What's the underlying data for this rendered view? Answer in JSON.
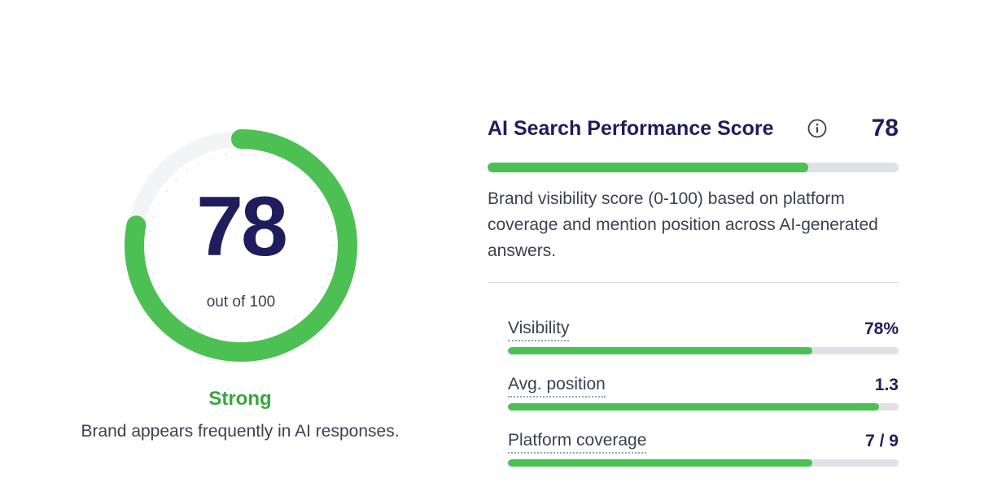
{
  "colors": {
    "accent_green": "#4cc052",
    "rating_green": "#3aa53f",
    "track_gray": "#dfe1e6",
    "navy": "#1f1d5c",
    "text_gray": "#3d3f52"
  },
  "gauge": {
    "score": "78",
    "out_of": "out of 100",
    "fraction": 0.78,
    "rating": "Strong",
    "caption": "Brand appears frequently in AI responses."
  },
  "summary": {
    "title": "AI Search Performance Score",
    "info_icon": "info-icon",
    "score": "78",
    "progress": 0.78,
    "description": "Brand visibility score (0-100) based on platform coverage and mention position across AI-generated answers."
  },
  "metrics": [
    {
      "label": "Visibility",
      "value": "78%",
      "progress": 0.78
    },
    {
      "label": "Avg. position",
      "value": "1.3",
      "progress": 0.95
    },
    {
      "label": "Platform coverage",
      "value": "7 / 9",
      "progress": 0.78
    }
  ]
}
